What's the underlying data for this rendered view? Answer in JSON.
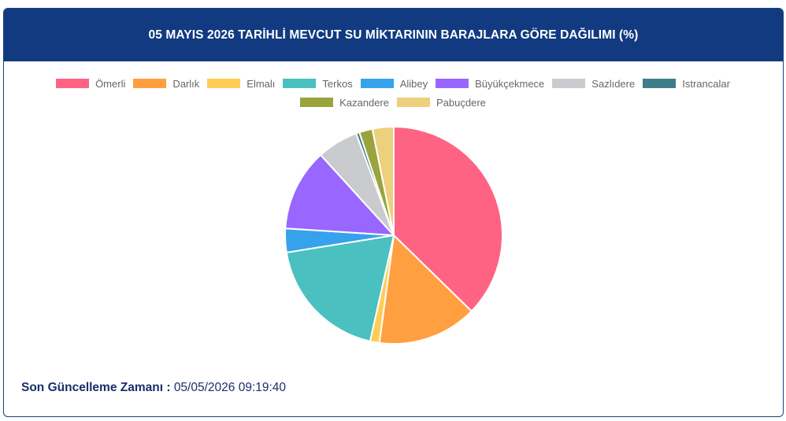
{
  "header": {
    "title": "05 MAYIS 2026 TARİHLİ MEVCUT SU MİKTARININ BARAJLARA GÖRE DAĞILIMI (%)"
  },
  "chart_data": {
    "type": "pie",
    "title": "05 MAYIS 2026 TARİHLİ MEVCUT SU MİKTARININ BARAJLARA GÖRE DAĞILIMI (%)",
    "legend_position": "top",
    "categories": [
      "Ömerli",
      "Darlık",
      "Elmalı",
      "Terkos",
      "Alibey",
      "Büyükçekmece",
      "Sazlıdere",
      "Istrancalar",
      "Kazandere",
      "Pabuçdere"
    ],
    "values": [
      37.8,
      15.0,
      1.4,
      19.2,
      3.6,
      12.4,
      6.2,
      0.5,
      2.0,
      3.2
    ],
    "colors": [
      "#ff6384",
      "#ff9f40",
      "#ffcd56",
      "#4bc0c0",
      "#36a2eb",
      "#9966ff",
      "#c9cbcf",
      "#3e7e8a",
      "#9aa33d",
      "#ecd07c"
    ]
  },
  "legend_rows": [
    [
      0,
      1,
      2,
      3,
      4,
      5,
      6,
      7
    ],
    [
      8,
      9
    ]
  ],
  "footer": {
    "label": "Son Güncelleme Zamanı :",
    "value": "05/05/2026 09:19:40"
  }
}
